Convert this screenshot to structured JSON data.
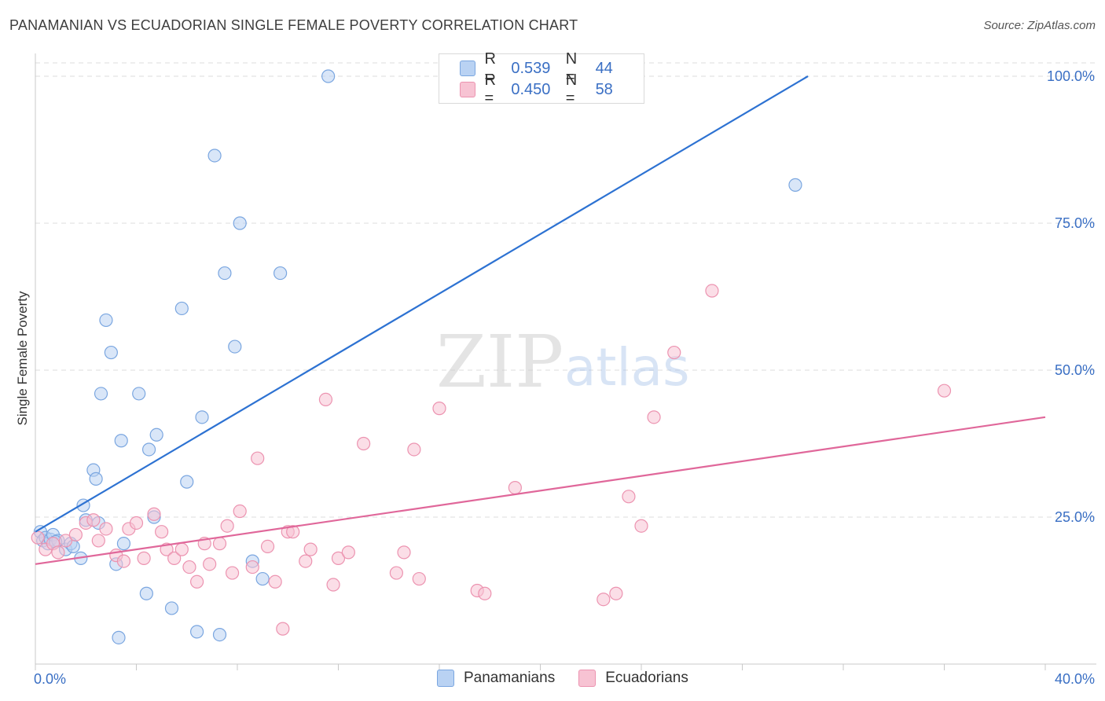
{
  "title": "PANAMANIAN VS ECUADORIAN SINGLE FEMALE POVERTY CORRELATION CHART",
  "source": "Source: ZipAtlas.com",
  "watermark": {
    "zip": "ZIP",
    "atlas": "atlas"
  },
  "legend_top": [
    {
      "r_label": "R =",
      "r_value": "0.539",
      "n_label": "N =",
      "n_value": "44"
    },
    {
      "r_label": "R =",
      "r_value": "0.450",
      "n_label": "N =",
      "n_value": "58"
    }
  ],
  "colors": {
    "blue_fill": "#b9d2f3",
    "blue_stroke": "#7aa6e0",
    "blue_line": "#2d72d2",
    "pink_fill": "#f7c3d3",
    "pink_stroke": "#ec93b0",
    "pink_line": "#e0679a",
    "grid": "#dcdcdc",
    "axis_text": "#3a6fc4"
  },
  "chart_data": {
    "type": "scatter",
    "ylabel": "Single Female Poverty",
    "xlabel": "",
    "xlim": [
      0,
      40
    ],
    "ylim": [
      0,
      100
    ],
    "x_tick_labels": [
      {
        "x": 0,
        "label": "0.0%"
      },
      {
        "x": 40,
        "label": "40.0%"
      }
    ],
    "y_tick_labels": [
      {
        "y": 25,
        "label": "25.0%"
      },
      {
        "y": 50,
        "label": "50.0%"
      },
      {
        "y": 75,
        "label": "75.0%"
      },
      {
        "y": 100,
        "label": "100.0%"
      }
    ],
    "series": [
      {
        "name": "Panamanians",
        "color": "blue",
        "trend": [
          [
            0,
            22.5
          ],
          [
            30.6,
            100
          ]
        ],
        "points": [
          [
            0.2,
            22.5
          ],
          [
            0.3,
            21.0
          ],
          [
            0.4,
            21.5
          ],
          [
            0.5,
            20.5
          ],
          [
            0.6,
            21.2
          ],
          [
            0.7,
            22.0
          ],
          [
            0.9,
            21.0
          ],
          [
            1.2,
            19.5
          ],
          [
            1.4,
            20.5
          ],
          [
            1.8,
            18.0
          ],
          [
            1.9,
            27.0
          ],
          [
            2.0,
            24.5
          ],
          [
            2.3,
            33.0
          ],
          [
            2.4,
            31.5
          ],
          [
            2.5,
            24.0
          ],
          [
            2.6,
            46.0
          ],
          [
            2.8,
            58.5
          ],
          [
            3.0,
            53.0
          ],
          [
            3.2,
            17.0
          ],
          [
            3.4,
            38.0
          ],
          [
            3.5,
            20.5
          ],
          [
            3.3,
            4.5
          ],
          [
            4.1,
            46.0
          ],
          [
            4.4,
            12.0
          ],
          [
            4.5,
            36.5
          ],
          [
            4.7,
            25.0
          ],
          [
            4.8,
            39.0
          ],
          [
            5.4,
            9.5
          ],
          [
            5.8,
            60.5
          ],
          [
            6.0,
            31.0
          ],
          [
            6.4,
            5.5
          ],
          [
            6.6,
            42.0
          ],
          [
            7.1,
            86.5
          ],
          [
            7.3,
            5.0
          ],
          [
            7.5,
            66.5
          ],
          [
            7.9,
            54.0
          ],
          [
            8.1,
            75.0
          ],
          [
            8.6,
            17.5
          ],
          [
            9.0,
            14.5
          ],
          [
            9.7,
            66.5
          ],
          [
            11.6,
            100.0
          ],
          [
            30.1,
            81.5
          ],
          [
            0.8,
            20.8
          ],
          [
            1.5,
            20.0
          ]
        ]
      },
      {
        "name": "Ecuadorians",
        "color": "pink",
        "trend": [
          [
            0,
            17.0
          ],
          [
            40,
            42.0
          ]
        ],
        "points": [
          [
            0.1,
            21.5
          ],
          [
            0.4,
            19.5
          ],
          [
            0.7,
            20.5
          ],
          [
            0.9,
            19.0
          ],
          [
            1.2,
            21.0
          ],
          [
            1.6,
            22.0
          ],
          [
            2.0,
            24.0
          ],
          [
            2.3,
            24.5
          ],
          [
            2.5,
            21.0
          ],
          [
            2.8,
            23.0
          ],
          [
            3.2,
            18.5
          ],
          [
            3.5,
            17.5
          ],
          [
            3.7,
            23.0
          ],
          [
            4.0,
            24.0
          ],
          [
            4.3,
            18.0
          ],
          [
            4.7,
            25.5
          ],
          [
            5.0,
            22.5
          ],
          [
            5.2,
            19.5
          ],
          [
            5.5,
            18.0
          ],
          [
            5.8,
            19.5
          ],
          [
            6.1,
            16.5
          ],
          [
            6.4,
            14.0
          ],
          [
            6.7,
            20.5
          ],
          [
            6.9,
            17.0
          ],
          [
            7.3,
            20.5
          ],
          [
            7.6,
            23.5
          ],
          [
            7.8,
            15.5
          ],
          [
            8.1,
            26.0
          ],
          [
            8.6,
            16.5
          ],
          [
            8.8,
            35.0
          ],
          [
            9.2,
            20.0
          ],
          [
            9.5,
            14.0
          ],
          [
            9.8,
            6.0
          ],
          [
            10.0,
            22.5
          ],
          [
            10.2,
            22.5
          ],
          [
            10.7,
            17.5
          ],
          [
            10.9,
            19.5
          ],
          [
            11.5,
            45.0
          ],
          [
            11.8,
            13.5
          ],
          [
            12.0,
            18.0
          ],
          [
            12.4,
            19.0
          ],
          [
            13.0,
            37.5
          ],
          [
            14.3,
            15.5
          ],
          [
            14.6,
            19.0
          ],
          [
            15.0,
            36.5
          ],
          [
            15.2,
            14.5
          ],
          [
            16.0,
            43.5
          ],
          [
            17.5,
            12.5
          ],
          [
            17.8,
            12.0
          ],
          [
            19.0,
            30.0
          ],
          [
            22.5,
            11.0
          ],
          [
            23.0,
            12.0
          ],
          [
            23.5,
            28.5
          ],
          [
            24.0,
            23.5
          ],
          [
            24.5,
            42.0
          ],
          [
            25.3,
            53.0
          ],
          [
            26.8,
            63.5
          ],
          [
            36.0,
            46.5
          ]
        ]
      }
    ]
  },
  "bottom_legend": [
    {
      "label": "Panamanians",
      "color": "blue"
    },
    {
      "label": "Ecuadorians",
      "color": "pink"
    }
  ]
}
